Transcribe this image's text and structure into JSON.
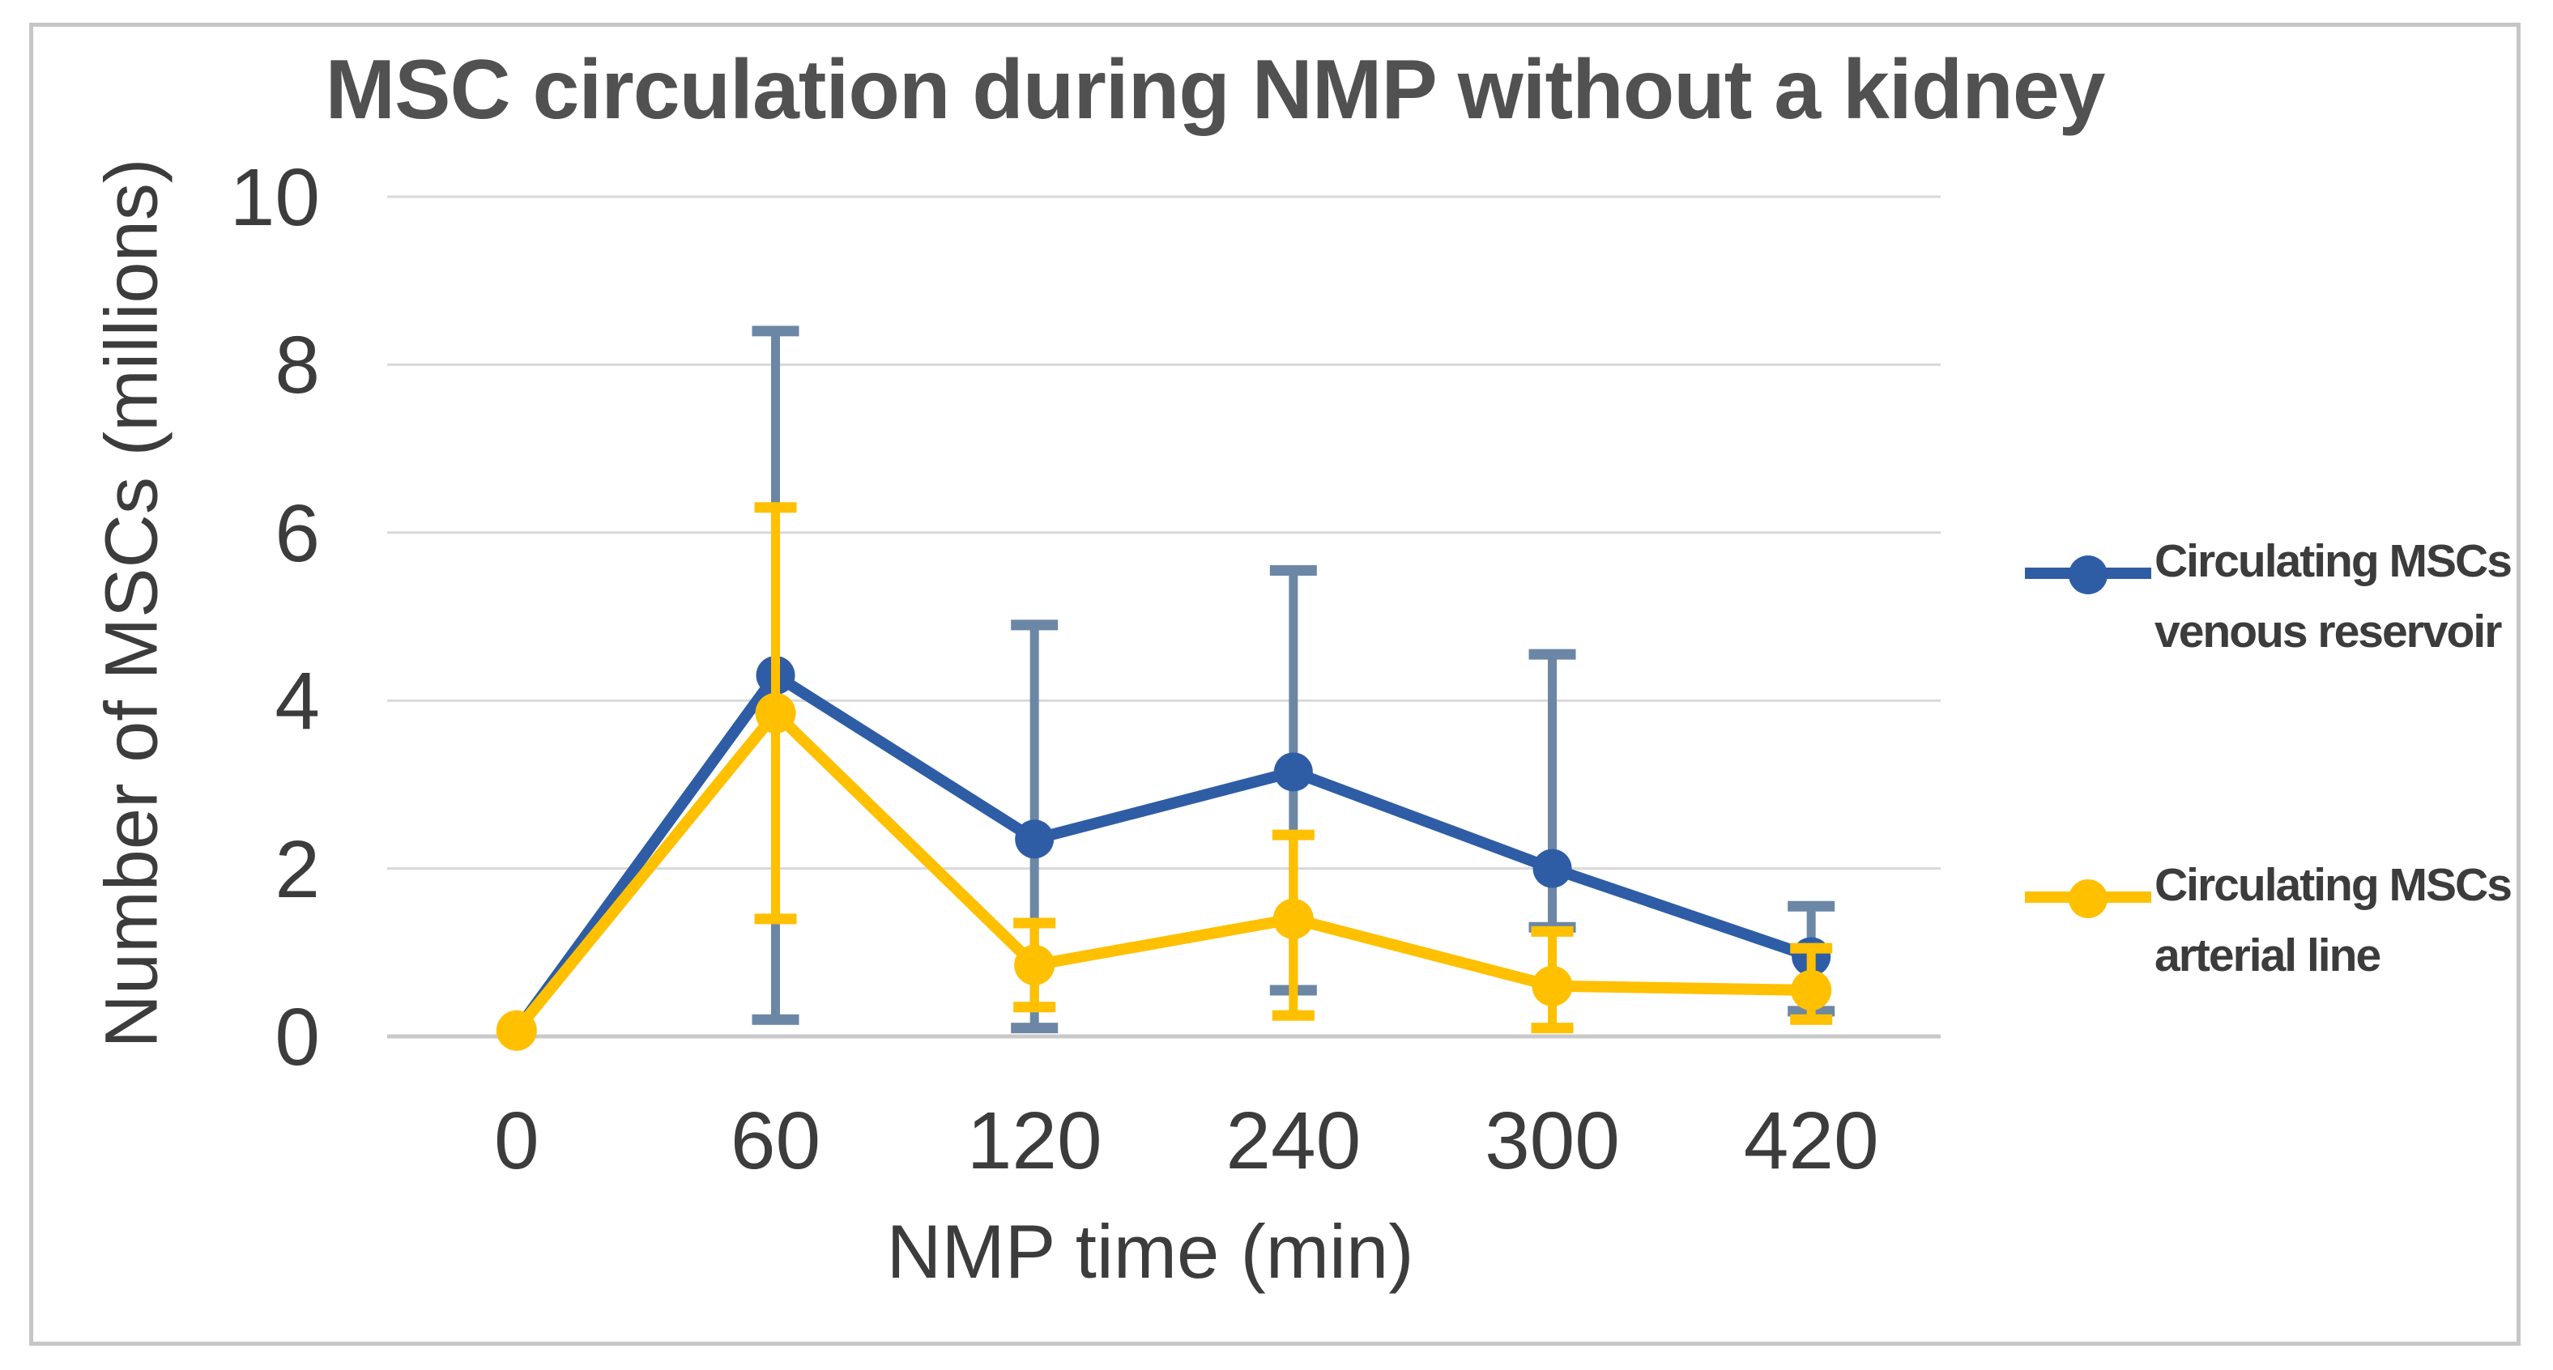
{
  "figure": {
    "title": "MSC circulation during NMP without a kidney",
    "y_axis_title": "Number of MSCs (millions)",
    "x_axis_title": "NMP time (min)"
  },
  "chart_data": {
    "type": "line",
    "title": "MSC circulation during NMP without a kidney",
    "xlabel": "NMP time (min)",
    "ylabel": "Number of MSCs (millions)",
    "categories": [
      "0",
      "60",
      "120",
      "240",
      "300",
      "420"
    ],
    "y_ticks": [
      0,
      2,
      4,
      6,
      8,
      10
    ],
    "ylim": [
      0,
      10
    ],
    "grid": "horizontal",
    "legend_position": "right",
    "series": [
      {
        "name": "Circulating MSCs venous reservoir",
        "name_lines": [
          "Circulating MSCs",
          "venous reservoir"
        ],
        "color": "#2e5da6",
        "error_color": "#6b87a5",
        "marker": "circle",
        "values": [
          0.07,
          4.3,
          2.35,
          3.15,
          2.0,
          0.95
        ],
        "error_low": [
          null,
          0.2,
          0.1,
          0.55,
          1.3,
          0.3
        ],
        "error_high": [
          null,
          8.4,
          4.9,
          5.55,
          4.55,
          1.55
        ]
      },
      {
        "name": "Circulating MSCs arterial line",
        "name_lines": [
          "Circulating MSCs",
          "arterial line"
        ],
        "color": "#ffc000",
        "error_color": "#ffc000",
        "marker": "circle",
        "values": [
          0.07,
          3.85,
          0.85,
          1.4,
          0.6,
          0.55
        ],
        "error_low": [
          null,
          1.4,
          0.35,
          0.25,
          0.1,
          0.2
        ],
        "error_high": [
          null,
          6.3,
          1.35,
          2.4,
          1.25,
          1.05
        ]
      }
    ]
  },
  "colors": {
    "background": "#ffffff",
    "border": "#c6c6c6",
    "grid": "#d9d9d9",
    "baseline": "#c9c9c9",
    "title_text": "#515151",
    "axis_text": "#3c3c3c"
  }
}
